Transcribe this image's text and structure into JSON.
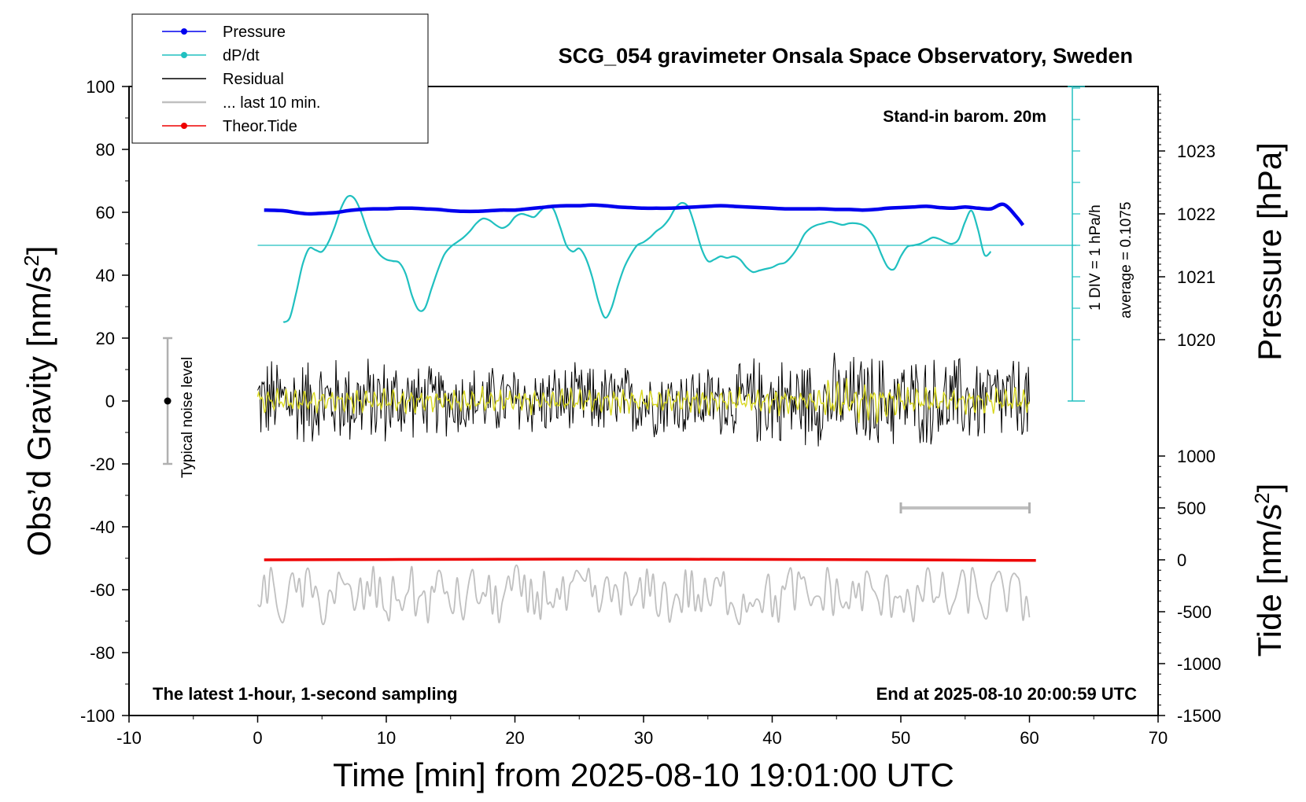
{
  "chart_data": {
    "type": "line",
    "title": "SCG_054 gravimeter Onsala Space Observatory, Sweden",
    "xlabel": "Time [min] from 2025-08-10 19:01:00 UTC",
    "ylabel_left": "Obs’d Gravity [nm/s",
    "ylabel_left_sup": "2",
    "ylabel_left_close": "]",
    "ylabel_right_pressure": "Pressure [hPa]",
    "ylabel_right_tide": "Tide [nm/s",
    "ylabel_right_tide_sup": "2",
    "ylabel_right_tide_close": "]",
    "xlim": [
      -10,
      70
    ],
    "ylim": [
      -100,
      100
    ],
    "x_ticks": [
      "-10",
      "0",
      "10",
      "20",
      "30",
      "40",
      "50",
      "60",
      "70"
    ],
    "y_ticks": [
      "100",
      "80",
      "60",
      "40",
      "20",
      "0",
      "-20",
      "-40",
      "-60",
      "-80",
      "-100"
    ],
    "pressure_axis": {
      "ticks": [
        "1023",
        "1022",
        "1021",
        "1020"
      ],
      "tick_values": [
        1023,
        1022,
        1021,
        1020
      ]
    },
    "tide_axis": {
      "ticks": [
        "1000",
        "500",
        "0",
        "-500",
        "-1000",
        "-1500"
      ],
      "tick_values": [
        1000,
        500,
        0,
        -500,
        -1000,
        -1500
      ]
    },
    "annotations": {
      "stand_in": "Stand-in barom. 20m",
      "div_label": "1 DIV = 1 hPa/h",
      "average_label": "average = 0.1075",
      "noise_label": "Typical noise level",
      "bottom_left": "The latest 1-hour, 1-second sampling",
      "bottom_right": "End at 2025-08-10 20:00:59 UTC"
    },
    "legend": [
      {
        "name": "Pressure",
        "color": "#0000ee",
        "marker": true
      },
      {
        "name": "dP/dt",
        "color": "#20c0c0",
        "marker": true
      },
      {
        "name": "Residual",
        "color": "#000000",
        "marker": false
      },
      {
        "name": "... last 10 min.",
        "color": "#c0c0c0",
        "marker": false
      },
      {
        "name": "Theor.Tide",
        "color": "#ee0000",
        "marker": true
      }
    ],
    "series": [
      {
        "name": "Pressure",
        "unit": "hPa",
        "color": "#0000ee",
        "x": [
          0.5,
          2,
          3,
          4,
          5,
          6,
          7,
          8,
          9,
          10,
          11,
          12,
          13,
          14,
          15,
          16,
          17,
          18,
          19,
          20,
          21,
          22,
          23,
          24,
          25,
          26,
          27,
          28,
          29,
          30,
          31,
          32,
          33,
          34,
          35,
          36,
          37,
          38,
          39,
          40,
          41,
          42,
          43,
          44,
          45,
          46,
          47,
          48,
          49,
          50,
          51,
          52,
          53,
          54,
          55,
          56,
          57,
          58,
          59,
          59.5
        ],
        "values": [
          1022.06,
          1022.05,
          1022.02,
          1022.0,
          1022.01,
          1022.02,
          1022.05,
          1022.07,
          1022.08,
          1022.08,
          1022.09,
          1022.09,
          1022.08,
          1022.07,
          1022.05,
          1022.04,
          1022.04,
          1022.05,
          1022.06,
          1022.06,
          1022.08,
          1022.1,
          1022.12,
          1022.13,
          1022.13,
          1022.14,
          1022.13,
          1022.11,
          1022.1,
          1022.09,
          1022.09,
          1022.09,
          1022.1,
          1022.11,
          1022.12,
          1022.13,
          1022.12,
          1022.11,
          1022.1,
          1022.09,
          1022.08,
          1022.08,
          1022.08,
          1022.08,
          1022.07,
          1022.07,
          1022.06,
          1022.07,
          1022.09,
          1022.1,
          1022.11,
          1022.12,
          1022.1,
          1022.09,
          1022.11,
          1022.09,
          1022.08,
          1022.15,
          1021.95,
          1021.82
        ]
      },
      {
        "name": "dP/dt",
        "unit": "hPa/h",
        "color": "#20c0c0",
        "baseline": 1021.5,
        "x": [
          2,
          2.5,
          3,
          3.5,
          4,
          4.5,
          5,
          5.5,
          6,
          6.5,
          7,
          7.5,
          8,
          8.5,
          9,
          9.5,
          10,
          10.5,
          11,
          11.5,
          12,
          12.5,
          13,
          13.5,
          14,
          14.5,
          15,
          15.5,
          16,
          16.5,
          17,
          17.5,
          18,
          18.5,
          19,
          19.5,
          20,
          20.5,
          21,
          21.5,
          22,
          22.5,
          23,
          23.5,
          24,
          24.5,
          25,
          25.5,
          26,
          26.5,
          27,
          27.5,
          28,
          28.5,
          29,
          29.5,
          30,
          30.5,
          31,
          31.5,
          32,
          32.5,
          33,
          33.5,
          34,
          34.5,
          35,
          35.5,
          36,
          36.5,
          37,
          37.5,
          38,
          38.5,
          39,
          39.5,
          40,
          40.5,
          41,
          41.5,
          42,
          42.5,
          43,
          43.5,
          44,
          44.5,
          45,
          45.5,
          46,
          46.5,
          47,
          47.5,
          48,
          48.5,
          49,
          49.5,
          50,
          50.5,
          51,
          51.5,
          52,
          52.5,
          53,
          53.5,
          54,
          54.5,
          55,
          55.5,
          56,
          56.5,
          57
        ],
        "values": [
          -2.45,
          -2.3,
          -1.5,
          -0.6,
          -0.1,
          -0.15,
          -0.2,
          0.1,
          0.6,
          1.2,
          1.55,
          1.5,
          1.1,
          0.5,
          0.0,
          -0.3,
          -0.45,
          -0.5,
          -0.55,
          -0.9,
          -1.6,
          -2.05,
          -2.0,
          -1.4,
          -0.8,
          -0.3,
          -0.05,
          0.1,
          0.25,
          0.45,
          0.7,
          0.85,
          0.8,
          0.65,
          0.55,
          0.65,
          0.9,
          1.0,
          0.95,
          0.9,
          1.1,
          1.25,
          1.15,
          0.6,
          0.0,
          -0.2,
          -0.1,
          -0.4,
          -1.0,
          -1.8,
          -2.3,
          -2.0,
          -1.3,
          -0.7,
          -0.3,
          0.0,
          0.1,
          0.25,
          0.45,
          0.6,
          0.85,
          1.2,
          1.35,
          1.2,
          0.6,
          -0.1,
          -0.5,
          -0.45,
          -0.35,
          -0.4,
          -0.35,
          -0.45,
          -0.7,
          -0.85,
          -0.8,
          -0.75,
          -0.7,
          -0.6,
          -0.55,
          -0.35,
          -0.05,
          0.35,
          0.55,
          0.65,
          0.7,
          0.75,
          0.7,
          0.65,
          0.7,
          0.7,
          0.65,
          0.5,
          0.2,
          -0.3,
          -0.7,
          -0.75,
          -0.35,
          -0.05,
          0.0,
          0.05,
          0.15,
          0.25,
          0.2,
          0.1,
          0.05,
          0.2,
          0.75,
          1.1,
          0.5,
          -0.3,
          -0.2
        ]
      },
      {
        "name": "Residual",
        "unit": "nm/s2",
        "color": "#000000",
        "x_range": [
          0,
          60
        ],
        "amplitude": 16
      },
      {
        "name": "... last 10 min.",
        "unit": "nm/s2",
        "color": "#c0c0c0",
        "x_range": [
          0,
          60
        ],
        "amplitude": 8,
        "offset": -62
      },
      {
        "name": "Residual (smoothed)",
        "unit": "nm/s2",
        "color": "#d8d820",
        "x_range": [
          0,
          60
        ],
        "amplitude": 5
      },
      {
        "name": "Theor.Tide",
        "unit": "nm/s2",
        "color": "#ee0000",
        "x": [
          0.5,
          10,
          20,
          30,
          40,
          50,
          60.5
        ],
        "values": [
          0,
          3,
          6,
          6,
          4,
          0,
          -6
        ]
      }
    ],
    "noise_bar": {
      "x": -7,
      "center": 0,
      "range": [
        -20,
        20
      ]
    },
    "last10_bar": {
      "x_range": [
        50,
        60
      ],
      "tide_level": 500
    }
  }
}
